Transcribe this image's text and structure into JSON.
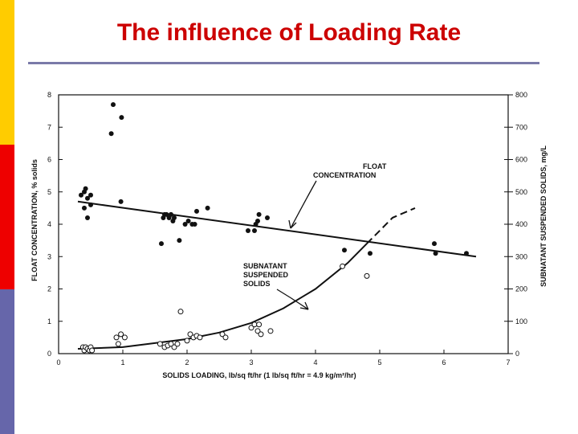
{
  "slide": {
    "title": "The influence of Loading Rate",
    "accent_colors": [
      "#ffcc00",
      "#ee0000",
      "#6666aa"
    ]
  },
  "chart_data": {
    "type": "scatter",
    "xlabel": "SOLIDS LOADING, lb/sq ft/hr (1 lb/sq ft/hr = 4.9 kg/m²/hr)",
    "ylabel_left": "FLOAT CONCENTRATION, % solids",
    "ylabel_right": "SUBNATANT SUSPENDED SOLIDS, mg/L",
    "xlim": [
      0,
      7
    ],
    "ylim_left": [
      0,
      8
    ],
    "ylim_right": [
      0,
      800
    ],
    "x_ticks": [
      "0",
      "1",
      "2",
      "3",
      "4",
      "5",
      "6",
      "7"
    ],
    "y_left_ticks": [
      "0",
      "1",
      "2",
      "3",
      "4",
      "5",
      "6",
      "7",
      "8"
    ],
    "y_right_ticks": [
      "0",
      "100",
      "200",
      "300",
      "400",
      "500",
      "600",
      "700",
      "800"
    ],
    "grid": false,
    "series": [
      {
        "name": "FLOAT CONCENTRATION",
        "axis": "left",
        "marker": "filled",
        "points": [
          [
            0.35,
            4.9
          ],
          [
            0.4,
            5.0
          ],
          [
            0.4,
            4.5
          ],
          [
            0.42,
            5.1
          ],
          [
            0.45,
            4.2
          ],
          [
            0.45,
            4.8
          ],
          [
            0.5,
            4.9
          ],
          [
            0.5,
            4.6
          ],
          [
            0.82,
            6.8
          ],
          [
            0.85,
            7.7
          ],
          [
            0.98,
            7.3
          ],
          [
            0.97,
            4.7
          ],
          [
            1.6,
            3.4
          ],
          [
            1.63,
            4.2
          ],
          [
            1.65,
            4.3
          ],
          [
            1.68,
            4.3
          ],
          [
            1.72,
            4.2
          ],
          [
            1.75,
            4.3
          ],
          [
            1.78,
            4.1
          ],
          [
            1.8,
            4.2
          ],
          [
            1.88,
            3.5
          ],
          [
            1.97,
            4.0
          ],
          [
            2.02,
            4.1
          ],
          [
            2.08,
            4.0
          ],
          [
            2.12,
            4.0
          ],
          [
            2.15,
            4.4
          ],
          [
            2.32,
            4.5
          ],
          [
            2.95,
            3.8
          ],
          [
            3.05,
            3.8
          ],
          [
            3.07,
            4.0
          ],
          [
            3.1,
            4.1
          ],
          [
            3.12,
            4.3
          ],
          [
            3.25,
            4.2
          ],
          [
            4.45,
            3.2
          ],
          [
            4.85,
            3.1
          ],
          [
            5.85,
            3.4
          ],
          [
            5.87,
            3.1
          ],
          [
            6.35,
            3.1
          ]
        ],
        "trend": [
          [
            0.3,
            4.7
          ],
          [
            6.5,
            3.0
          ]
        ]
      },
      {
        "name": "SUBNATANT SUSPENDED SOLIDS",
        "axis": "right",
        "marker": "open",
        "points": [
          [
            0.38,
            20
          ],
          [
            0.4,
            10
          ],
          [
            0.42,
            20
          ],
          [
            0.45,
            15
          ],
          [
            0.48,
            10
          ],
          [
            0.5,
            20
          ],
          [
            0.52,
            10
          ],
          [
            0.9,
            50
          ],
          [
            0.93,
            30
          ],
          [
            0.97,
            60
          ],
          [
            1.03,
            50
          ],
          [
            1.58,
            30
          ],
          [
            1.65,
            20
          ],
          [
            1.7,
            25
          ],
          [
            1.75,
            30
          ],
          [
            1.8,
            20
          ],
          [
            1.85,
            30
          ],
          [
            1.9,
            130
          ],
          [
            2.0,
            40
          ],
          [
            2.05,
            60
          ],
          [
            2.1,
            50
          ],
          [
            2.15,
            55
          ],
          [
            2.2,
            50
          ],
          [
            2.55,
            60
          ],
          [
            2.6,
            50
          ],
          [
            3.0,
            80
          ],
          [
            3.05,
            90
          ],
          [
            3.1,
            70
          ],
          [
            3.12,
            90
          ],
          [
            3.15,
            60
          ],
          [
            3.3,
            70
          ],
          [
            4.42,
            270
          ],
          [
            4.8,
            240
          ]
        ],
        "trend": [
          [
            0.3,
            15
          ],
          [
            1.0,
            20
          ],
          [
            2.0,
            45
          ],
          [
            2.5,
            65
          ],
          [
            3.0,
            95
          ],
          [
            3.5,
            140
          ],
          [
            4.0,
            200
          ],
          [
            4.5,
            280
          ],
          [
            4.8,
            340
          ]
        ],
        "trend_dashed": [
          [
            4.8,
            340
          ],
          [
            5.2,
            420
          ],
          [
            5.55,
            450
          ]
        ]
      }
    ],
    "annotations": [
      {
        "text_lines": [
          "FLOAT",
          "CONCENTRATION"
        ],
        "target_series": "FLOAT CONCENTRATION"
      },
      {
        "text_lines": [
          "SUBNATANT",
          "SUSPENDED",
          "SOLIDS"
        ],
        "target_series": "SUBNATANT SUSPENDED SOLIDS"
      }
    ]
  }
}
